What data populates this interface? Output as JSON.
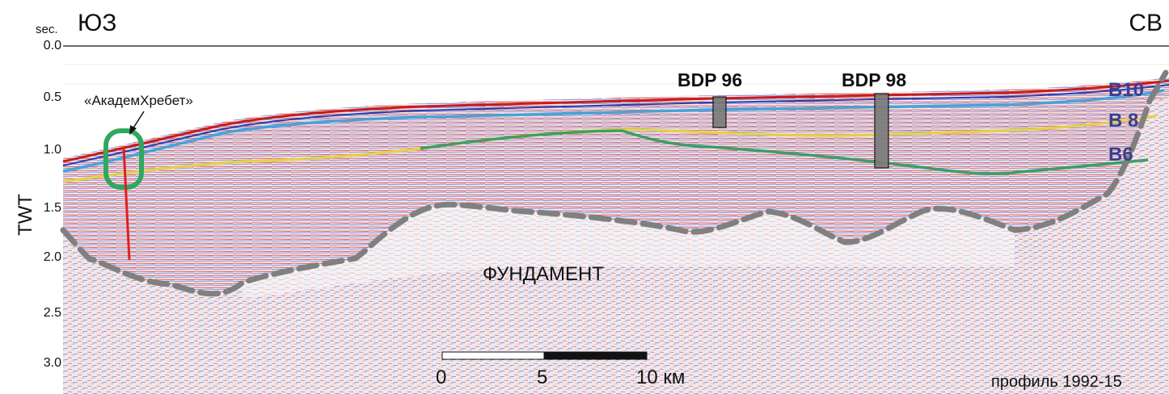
{
  "header": {
    "unit": "sec.",
    "left_direction": "ЮЗ",
    "right_direction": "СВ"
  },
  "axis": {
    "title": "TWT",
    "ticks": [
      "0.0",
      "0.5",
      "1.0",
      "1.5",
      "2.0",
      "2.5",
      "3.0"
    ]
  },
  "wells": [
    {
      "label": "BDP 96"
    },
    {
      "label": "BDP 98"
    }
  ],
  "horizons": [
    {
      "label": "B10",
      "color": "#3aa0d8"
    },
    {
      "label": "B 8",
      "color": "#e8d040"
    },
    {
      "label": "B6",
      "color": "#2e9a5a"
    }
  ],
  "ridge_label": "«АкадемХребет»",
  "basement_label": "ФУНДАМЕНТ",
  "scale_bar": {
    "labels": [
      "0",
      "5",
      "10 км"
    ]
  },
  "profile_label": "профиль 1992-15",
  "colors": {
    "basement_line": "#808080",
    "ridge_outline": "#2ea860",
    "fault_line": "#e02020",
    "horizon_text": "#3a3f8f"
  }
}
